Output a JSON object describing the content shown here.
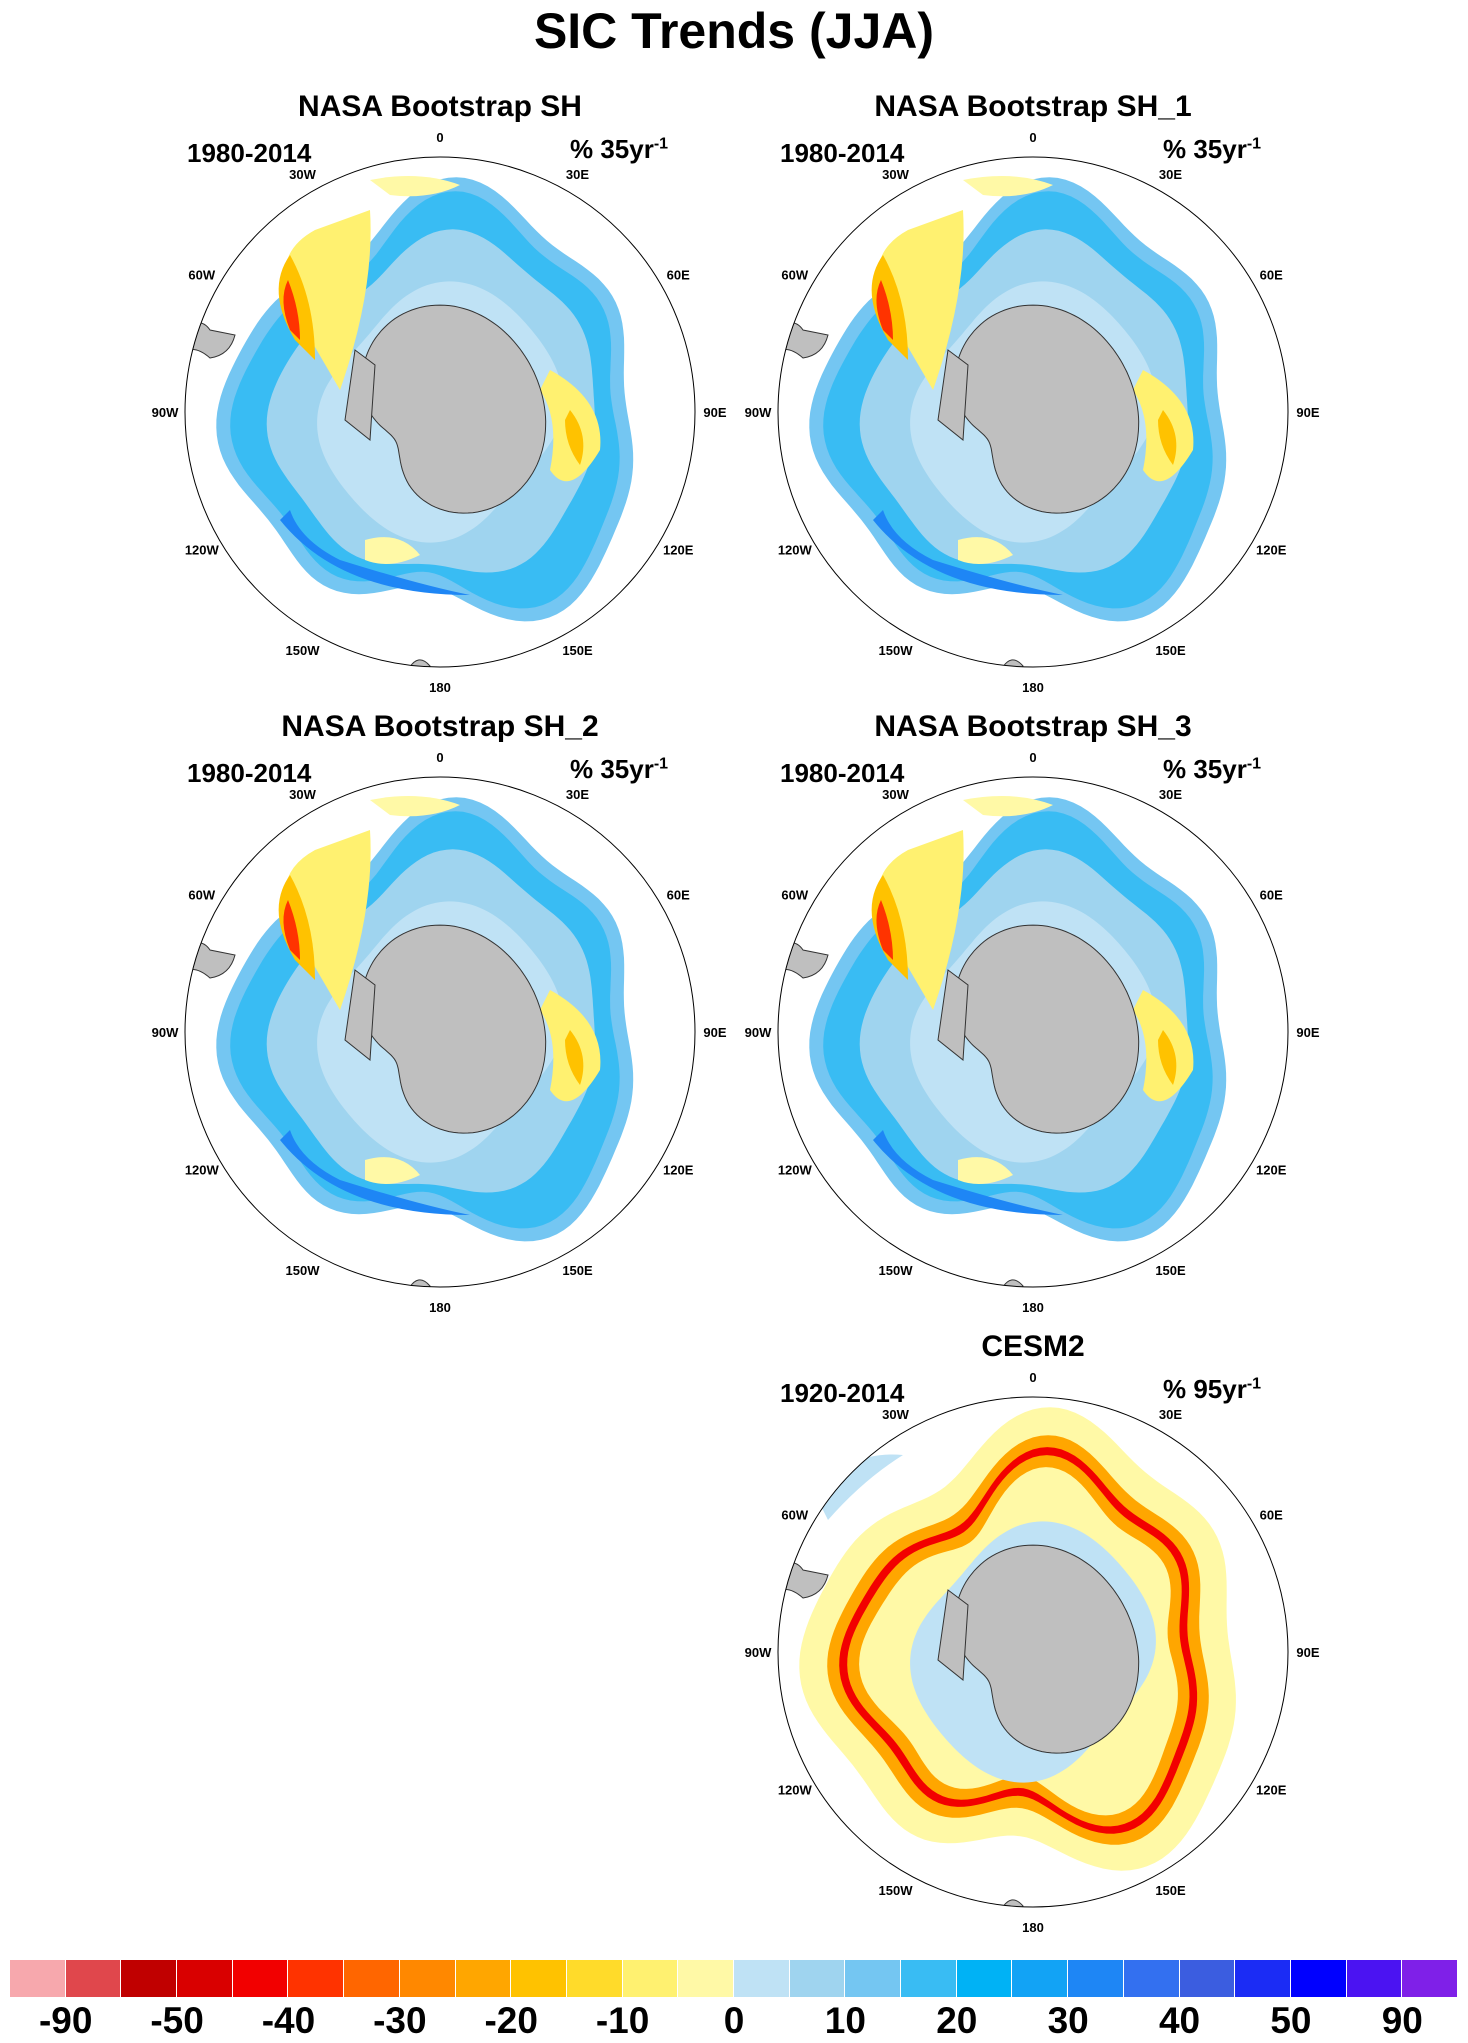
{
  "figure_title": "SIC Trends (JJA)",
  "panels": [
    {
      "title": "NASA Bootstrap SH",
      "period": "1980-2014",
      "units_main": "% 35yr",
      "units_sup": "-1",
      "kind": "obs"
    },
    {
      "title": "NASA Bootstrap SH_1",
      "period": "1980-2014",
      "units_main": "% 35yr",
      "units_sup": "-1",
      "kind": "obs"
    },
    {
      "title": "NASA Bootstrap SH_2",
      "period": "1980-2014",
      "units_main": "% 35yr",
      "units_sup": "-1",
      "kind": "obs"
    },
    {
      "title": "NASA Bootstrap SH_3",
      "period": "1980-2014",
      "units_main": "% 35yr",
      "units_sup": "-1",
      "kind": "obs"
    },
    {
      "title": "CESM2",
      "period": "1920-2014",
      "units_main": "% 95yr",
      "units_sup": "-1",
      "kind": "model"
    }
  ],
  "longitude_labels": {
    "top": "0",
    "r30": "30E",
    "r60": "60E",
    "r90": "90E",
    "r120": "120E",
    "r150": "150E",
    "bottom": "180",
    "l150": "150W",
    "l120": "120W",
    "l90": "90W",
    "l60": "60W",
    "l30": "30W"
  },
  "colorbar": {
    "labels": [
      "-90",
      "-50",
      "-40",
      "-30",
      "-20",
      "-10",
      "0",
      "10",
      "20",
      "30",
      "40",
      "50",
      "90"
    ],
    "colors": [
      "#f7a8ad",
      "#e0474c",
      "#c00000",
      "#d90000",
      "#f20000",
      "#ff3300",
      "#ff6600",
      "#ff8800",
      "#ffa600",
      "#ffc200",
      "#ffdb2a",
      "#fff170",
      "#fff9a6",
      "#bfe2f5",
      "#9fd4ef",
      "#74c6f2",
      "#39bcf3",
      "#00b2f5",
      "#12a3f5",
      "#1e86f5",
      "#3370f0",
      "#3b5de0",
      "#1b2cf5",
      "#0000ff",
      "#4b13f2",
      "#7f20e8"
    ]
  },
  "colors": {
    "land": "#bfbfbf",
    "outline": "#000000"
  }
}
